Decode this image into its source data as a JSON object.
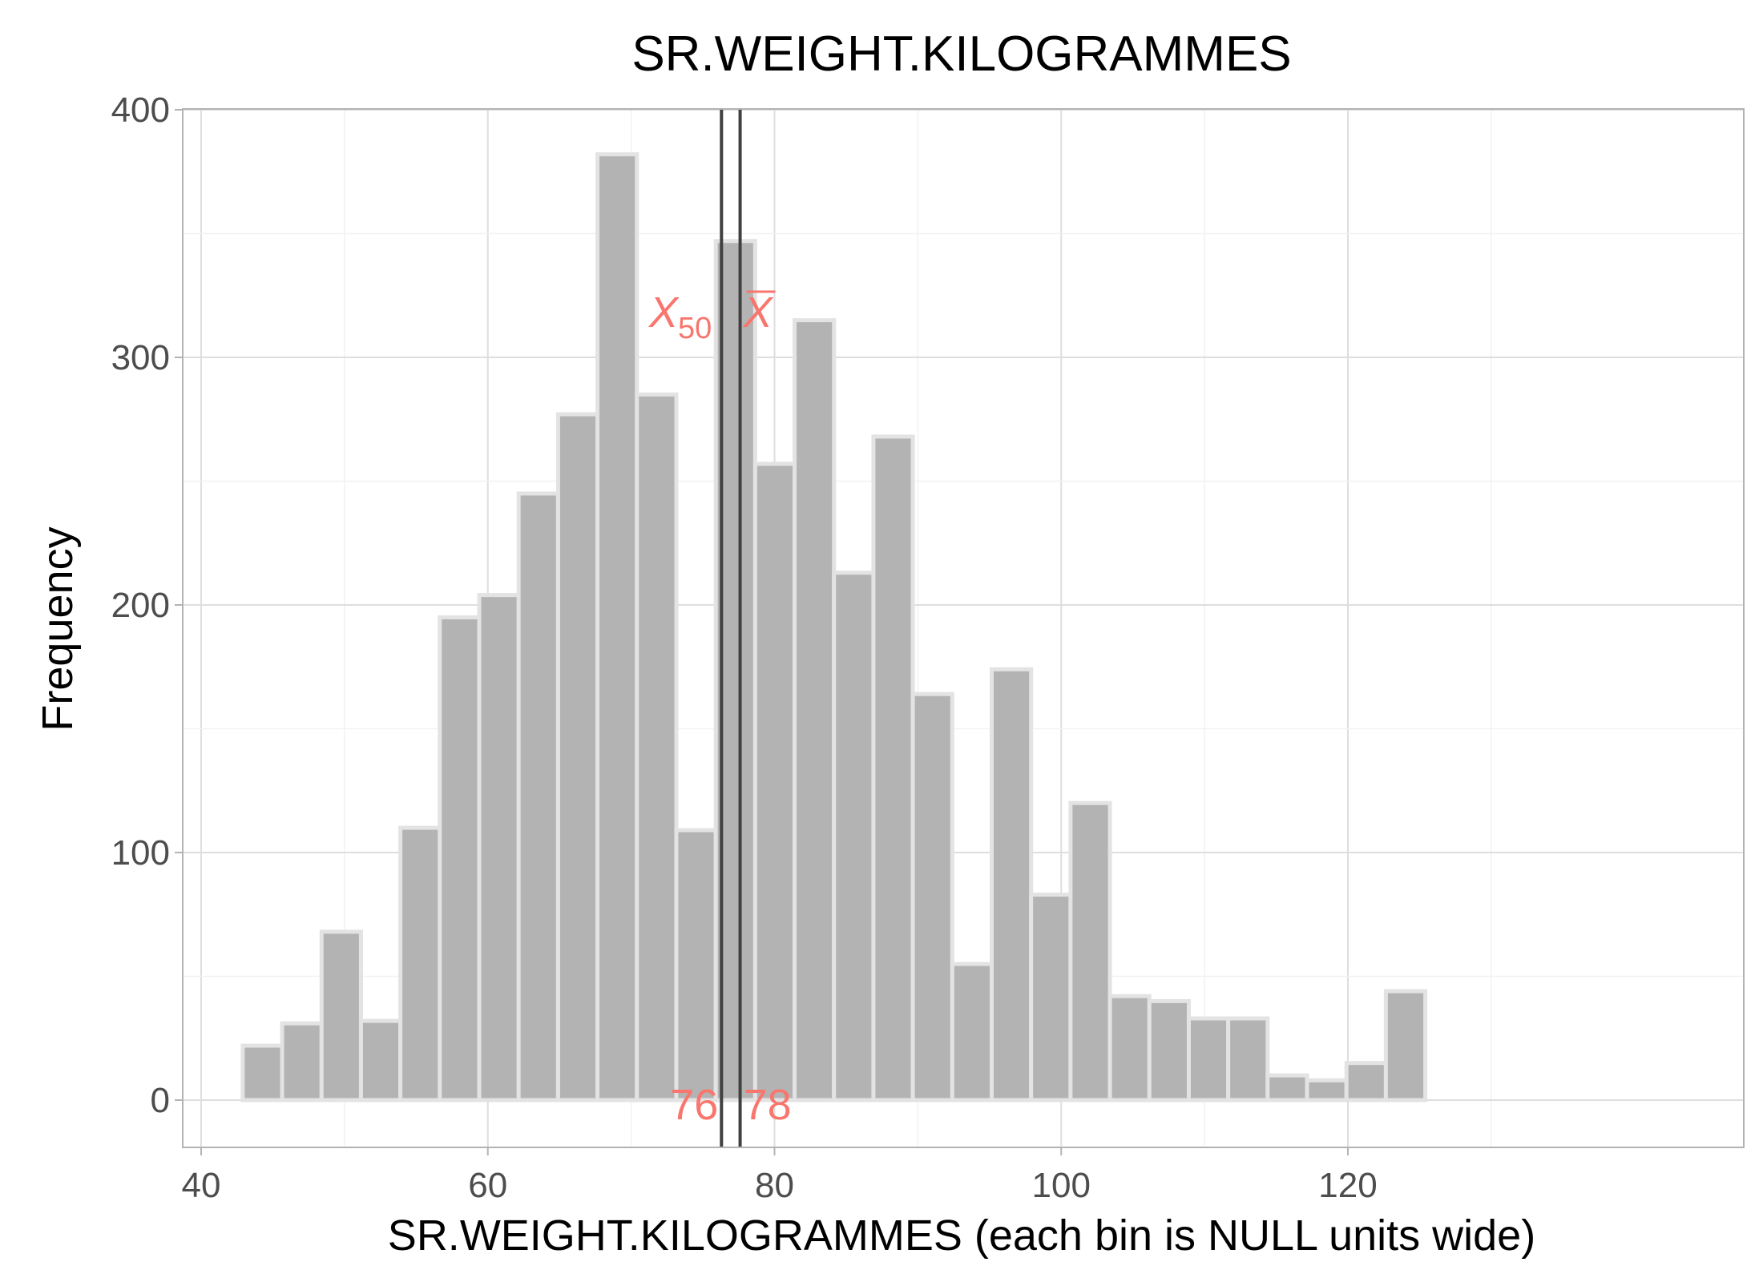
{
  "chart_data": {
    "type": "bar",
    "title": "SR.WEIGHT.KILOGRAMMES",
    "xlabel": "SR.WEIGHT.KILOGRAMMES (each bin is NULL units wide)",
    "ylabel": "Frequency",
    "xlim": [
      40,
      130
    ],
    "ylim": [
      0,
      400
    ],
    "x_ticks": [
      40,
      60,
      80,
      100,
      120
    ],
    "y_ticks": [
      0,
      100,
      200,
      300,
      400
    ],
    "x_tick_labels": [
      "40",
      "60",
      "80",
      "100",
      "120"
    ],
    "y_tick_labels": [
      "0",
      "100",
      "200",
      "300",
      "400"
    ],
    "grid": true,
    "bin_width": 2.75,
    "bins": [
      {
        "x0": 42.9,
        "x1": 45.65,
        "count": 22
      },
      {
        "x0": 45.65,
        "x1": 48.4,
        "count": 31
      },
      {
        "x0": 48.4,
        "x1": 51.15,
        "count": 68
      },
      {
        "x0": 51.15,
        "x1": 53.9,
        "count": 32
      },
      {
        "x0": 53.9,
        "x1": 56.65,
        "count": 110
      },
      {
        "x0": 56.65,
        "x1": 59.4,
        "count": 195
      },
      {
        "x0": 59.4,
        "x1": 62.15,
        "count": 204
      },
      {
        "x0": 62.15,
        "x1": 64.9,
        "count": 245
      },
      {
        "x0": 64.9,
        "x1": 67.65,
        "count": 277
      },
      {
        "x0": 67.65,
        "x1": 70.4,
        "count": 382
      },
      {
        "x0": 70.4,
        "x1": 73.15,
        "count": 285
      },
      {
        "x0": 73.15,
        "x1": 75.9,
        "count": 109
      },
      {
        "x0": 75.9,
        "x1": 78.65,
        "count": 347
      },
      {
        "x0": 78.65,
        "x1": 81.4,
        "count": 257
      },
      {
        "x0": 81.4,
        "x1": 84.15,
        "count": 315
      },
      {
        "x0": 84.15,
        "x1": 86.9,
        "count": 213
      },
      {
        "x0": 86.9,
        "x1": 89.65,
        "count": 268
      },
      {
        "x0": 89.65,
        "x1": 92.4,
        "count": 164
      },
      {
        "x0": 92.4,
        "x1": 95.15,
        "count": 55
      },
      {
        "x0": 95.15,
        "x1": 97.9,
        "count": 174
      },
      {
        "x0": 97.9,
        "x1": 100.65,
        "count": 83
      },
      {
        "x0": 100.65,
        "x1": 103.4,
        "count": 120
      },
      {
        "x0": 103.4,
        "x1": 106.15,
        "count": 42
      },
      {
        "x0": 106.15,
        "x1": 108.9,
        "count": 40
      },
      {
        "x0": 108.9,
        "x1": 111.65,
        "count": 33
      },
      {
        "x0": 111.65,
        "x1": 114.4,
        "count": 33
      },
      {
        "x0": 114.4,
        "x1": 117.15,
        "count": 10
      },
      {
        "x0": 117.15,
        "x1": 119.9,
        "count": 8
      },
      {
        "x0": 119.9,
        "x1": 122.65,
        "count": 15
      },
      {
        "x0": 122.65,
        "x1": 125.4,
        "count": 44
      }
    ],
    "reference_lines": [
      {
        "name": "median",
        "symbol": "X",
        "subscript": "50",
        "value": 76.3,
        "label": "76"
      },
      {
        "name": "mean",
        "symbol": "X",
        "overline": true,
        "value": 77.6,
        "label": "78"
      }
    ],
    "colors": {
      "bar_fill": "#b3b3b3",
      "bar_outline": "#e3e3e3",
      "annotation": "#f8766d",
      "reference_line": "#404040"
    }
  }
}
